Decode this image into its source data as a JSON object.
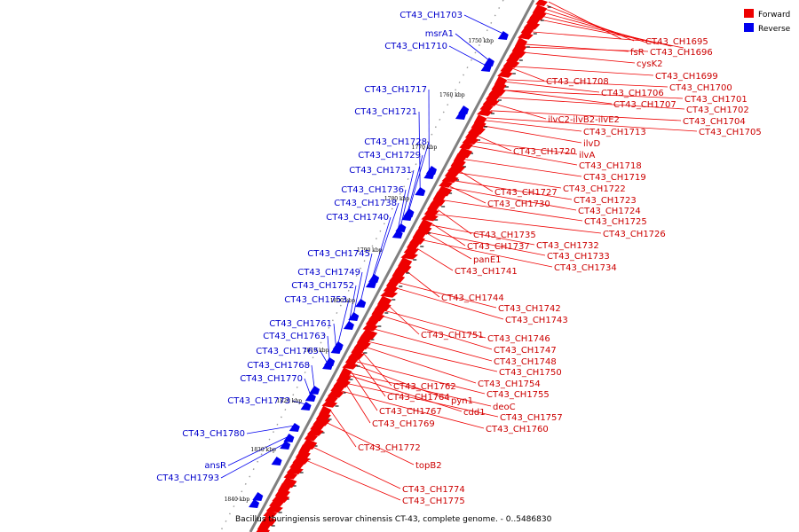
{
  "caption": "Bacillus thuringiensis serovar chinensis CT-43, complete genome. - 0..5486830",
  "legend": [
    {
      "label": "Forward",
      "color": "#ee0000"
    },
    {
      "label": "Reverse",
      "color": "#0000ee"
    }
  ],
  "colors": {
    "forward_gene": "#ee0000",
    "reverse_gene": "#0000ee",
    "forward_label": "#cc0000",
    "reverse_label": "#0000cc",
    "backbone": "#808080"
  },
  "ticks": [
    "1750 kbp",
    "1760 kbp",
    "1770 kbp",
    "1780 kbp",
    "1790 kbp",
    "1800 kbp",
    "1810 kbp",
    "1820 kbp",
    "1830 kbp",
    "1840 kbp"
  ],
  "reverse_labels": [
    "CT43_CH1703",
    "msrA1",
    "CT43_CH1710",
    "CT43_CH1717",
    "CT43_CH1721",
    "CT43_CH1728",
    "CT43_CH1729",
    "CT43_CH1731",
    "CT43_CH1736",
    "CT43_CH1738",
    "CT43_CH1740",
    "CT43_CH1745",
    "CT43_CH1749",
    "CT43_CH1752",
    "CT43_CH1753",
    "CT43_CH1761",
    "CT43_CH1763",
    "CT43_CH1765",
    "CT43_CH1768",
    "CT43_CH1770",
    "CT43_CH1773",
    "CT43_CH1780",
    "ansR",
    "CT43_CH1793"
  ],
  "forward_labels": [
    "CT43_CH1695",
    "fsR",
    "CT43_CH1696",
    "cysK2",
    "CT43_CH1699",
    "CT43_CH1700",
    "CT43_CH1708",
    "CT43_CH1706",
    "CT43_CH1701",
    "CT43_CH1707",
    "CT43_CH1702",
    "CT43_CH1704",
    "ilvC2-ilvB2-ilvE2",
    "CT43_CH1705",
    "CT43_CH1713",
    "ilvD",
    "CT43_CH1720",
    "ilvA",
    "CT43_CH1718",
    "CT43_CH1719",
    "CT43_CH1722",
    "CT43_CH1727",
    "CT43_CH1723",
    "CT43_CH1730",
    "CT43_CH1724",
    "CT43_CH1725",
    "CT43_CH1726",
    "CT43_CH1735",
    "CT43_CH1737",
    "CT43_CH1732",
    "panE1",
    "CT43_CH1733",
    "CT43_CH1741",
    "CT43_CH1734",
    "CT43_CH1744",
    "CT43_CH1742",
    "CT43_CH1743",
    "CT43_CH1751",
    "CT43_CH1746",
    "CT43_CH1747",
    "CT43_CH1748",
    "CT43_CH1750",
    "CT43_CH1754",
    "CT43_CH1762",
    "CT43_CH1755",
    "CT43_CH1764",
    "pyn1",
    "deoC",
    "CT43_CH1767",
    "cdd1",
    "CT43_CH1757",
    "CT43_CH1769",
    "CT43_CH1760",
    "CT43_CH1772",
    "topB2",
    "CT43_CH1774",
    "CT43_CH1775"
  ]
}
